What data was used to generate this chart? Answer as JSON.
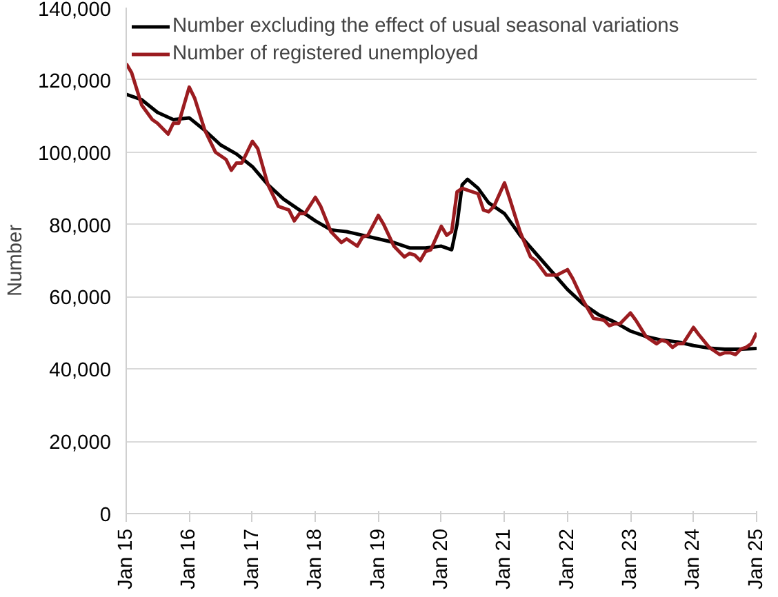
{
  "chart_data": {
    "type": "line",
    "ylabel": "Number",
    "legend": "top",
    "grid": "y",
    "line_style": "solid",
    "marker": "none",
    "xlim": [
      "2015-01",
      "2025-01"
    ],
    "ylim": [
      0,
      140000
    ],
    "yticks": [
      {
        "value": 0,
        "label": "0"
      },
      {
        "value": 20000,
        "label": "20,000"
      },
      {
        "value": 40000,
        "label": "40,000"
      },
      {
        "value": 60000,
        "label": "60,000"
      },
      {
        "value": 80000,
        "label": "80,000"
      },
      {
        "value": 100000,
        "label": "100,000"
      },
      {
        "value": 120000,
        "label": "120,000"
      },
      {
        "value": 140000,
        "label": "140,000"
      }
    ],
    "xticks": [
      {
        "value": "2015-01",
        "label": "Jan 15"
      },
      {
        "value": "2016-01",
        "label": "Jan 16"
      },
      {
        "value": "2017-01",
        "label": "Jan 17"
      },
      {
        "value": "2018-01",
        "label": "Jan 18"
      },
      {
        "value": "2019-01",
        "label": "Jan 19"
      },
      {
        "value": "2020-01",
        "label": "Jan 20"
      },
      {
        "value": "2021-01",
        "label": "Jan 21"
      },
      {
        "value": "2022-01",
        "label": "Jan 22"
      },
      {
        "value": "2023-01",
        "label": "Jan 23"
      },
      {
        "value": "2024-01",
        "label": "Jan 24"
      },
      {
        "value": "2025-01",
        "label": "Jan 25"
      }
    ],
    "series": [
      {
        "name": "Number excluding the effect of usual seasonal variations",
        "color": "#000000",
        "x": [
          "2015-01",
          "2015-04",
          "2015-07",
          "2015-10",
          "2016-01",
          "2016-04",
          "2016-07",
          "2016-10",
          "2017-01",
          "2017-04",
          "2017-07",
          "2017-10",
          "2018-01",
          "2018-04",
          "2018-07",
          "2018-10",
          "2019-01",
          "2019-04",
          "2019-07",
          "2019-10",
          "2020-01",
          "2020-03",
          "2020-04",
          "2020-05",
          "2020-06",
          "2020-08",
          "2020-10",
          "2021-01",
          "2021-04",
          "2021-07",
          "2021-10",
          "2022-01",
          "2022-04",
          "2022-07",
          "2022-10",
          "2023-01",
          "2023-04",
          "2023-07",
          "2023-10",
          "2024-01",
          "2024-04",
          "2024-07",
          "2024-10",
          "2025-01"
        ],
        "values": [
          116000,
          114500,
          111000,
          109000,
          109500,
          106000,
          102000,
          99500,
          96000,
          91000,
          87000,
          84000,
          81000,
          78500,
          78000,
          77000,
          76000,
          75000,
          73500,
          73500,
          74000,
          73000,
          80000,
          91000,
          92500,
          90000,
          86000,
          83000,
          77000,
          72000,
          67000,
          62000,
          58000,
          55000,
          53000,
          50500,
          49000,
          48000,
          47500,
          46500,
          45800,
          45500,
          45500,
          45700
        ]
      },
      {
        "name": "Number of registered unemployed",
        "color": "#9b1c20",
        "x": [
          "2015-01",
          "2015-02",
          "2015-04",
          "2015-06",
          "2015-07",
          "2015-09",
          "2015-10",
          "2015-11",
          "2016-01",
          "2016-02",
          "2016-04",
          "2016-06",
          "2016-08",
          "2016-09",
          "2016-10",
          "2016-11",
          "2017-01",
          "2017-02",
          "2017-04",
          "2017-06",
          "2017-08",
          "2017-09",
          "2017-10",
          "2017-11",
          "2018-01",
          "2018-02",
          "2018-04",
          "2018-06",
          "2018-07",
          "2018-08",
          "2018-09",
          "2018-10",
          "2018-11",
          "2019-01",
          "2019-02",
          "2019-04",
          "2019-06",
          "2019-07",
          "2019-08",
          "2019-09",
          "2019-10",
          "2019-11",
          "2020-01",
          "2020-02",
          "2020-03",
          "2020-04",
          "2020-05",
          "2020-06",
          "2020-08",
          "2020-09",
          "2020-10",
          "2020-11",
          "2021-01",
          "2021-02",
          "2021-04",
          "2021-06",
          "2021-07",
          "2021-08",
          "2021-09",
          "2021-10",
          "2021-11",
          "2022-01",
          "2022-02",
          "2022-04",
          "2022-06",
          "2022-08",
          "2022-09",
          "2022-10",
          "2022-11",
          "2023-01",
          "2023-02",
          "2023-04",
          "2023-06",
          "2023-07",
          "2023-08",
          "2023-09",
          "2023-10",
          "2023-11",
          "2024-01",
          "2024-02",
          "2024-04",
          "2024-06",
          "2024-07",
          "2024-08",
          "2024-09",
          "2024-10",
          "2024-11",
          "2024-12",
          "2025-01"
        ],
        "values": [
          124500,
          122000,
          113000,
          109000,
          108000,
          105000,
          108000,
          108000,
          118000,
          115000,
          106000,
          100000,
          98000,
          95000,
          97000,
          97000,
          103000,
          101000,
          91000,
          85000,
          84000,
          81000,
          83000,
          83000,
          87500,
          85000,
          78000,
          75000,
          76000,
          75000,
          74000,
          76500,
          77000,
          82500,
          80000,
          74000,
          71000,
          72000,
          71500,
          70000,
          72500,
          73000,
          79500,
          77000,
          78000,
          89000,
          90000,
          89500,
          88500,
          84000,
          83500,
          85000,
          91500,
          87000,
          78000,
          71000,
          70000,
          68000,
          66000,
          66000,
          66000,
          67500,
          65000,
          59000,
          54000,
          53500,
          52000,
          52500,
          52500,
          55500,
          53500,
          49000,
          47000,
          48000,
          47500,
          46000,
          47000,
          47000,
          51500,
          49500,
          46000,
          44000,
          44500,
          44500,
          44000,
          45500,
          46000,
          47000,
          50000
        ]
      }
    ]
  }
}
